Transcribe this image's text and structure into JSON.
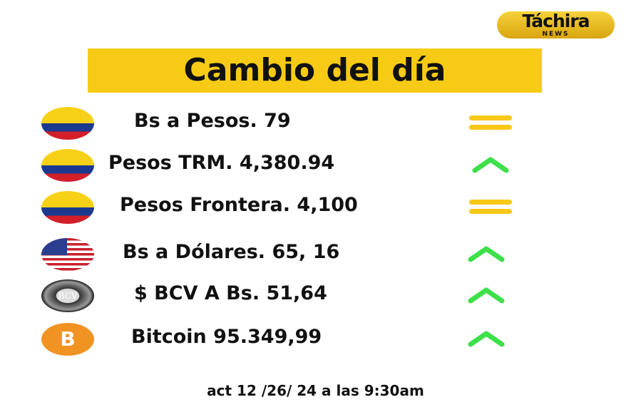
{
  "logo": {
    "text": "Táchira",
    "sub": "NEWS"
  },
  "title": "Cambio del día",
  "rows": [
    {
      "icon": "colombia-flag-icon",
      "label": "Bs a Pesos. 79",
      "trend": "equal"
    },
    {
      "icon": "colombia-flag-icon",
      "label": "Pesos TRM. 4,380.94",
      "trend": "up"
    },
    {
      "icon": "colombia-flag-icon",
      "label": "Pesos Frontera. 4,100",
      "trend": "equal"
    },
    {
      "icon": "usa-flag-icon",
      "label": "Bs a Dólares. 65, 16",
      "trend": "up"
    },
    {
      "icon": "bcv-seal-icon",
      "label": "$ BCV A Bs. 51,64",
      "trend": "up",
      "icon_text": "BCV"
    },
    {
      "icon": "bitcoin-icon",
      "label": "Bitcoin 95.349,99",
      "trend": "up",
      "icon_text": "B"
    }
  ],
  "colors": {
    "accent": "#f7cb15",
    "up": "#3ee04a",
    "equal": "#f7c815"
  },
  "footer": "act 12 /26/ 24 a las 9:30am"
}
